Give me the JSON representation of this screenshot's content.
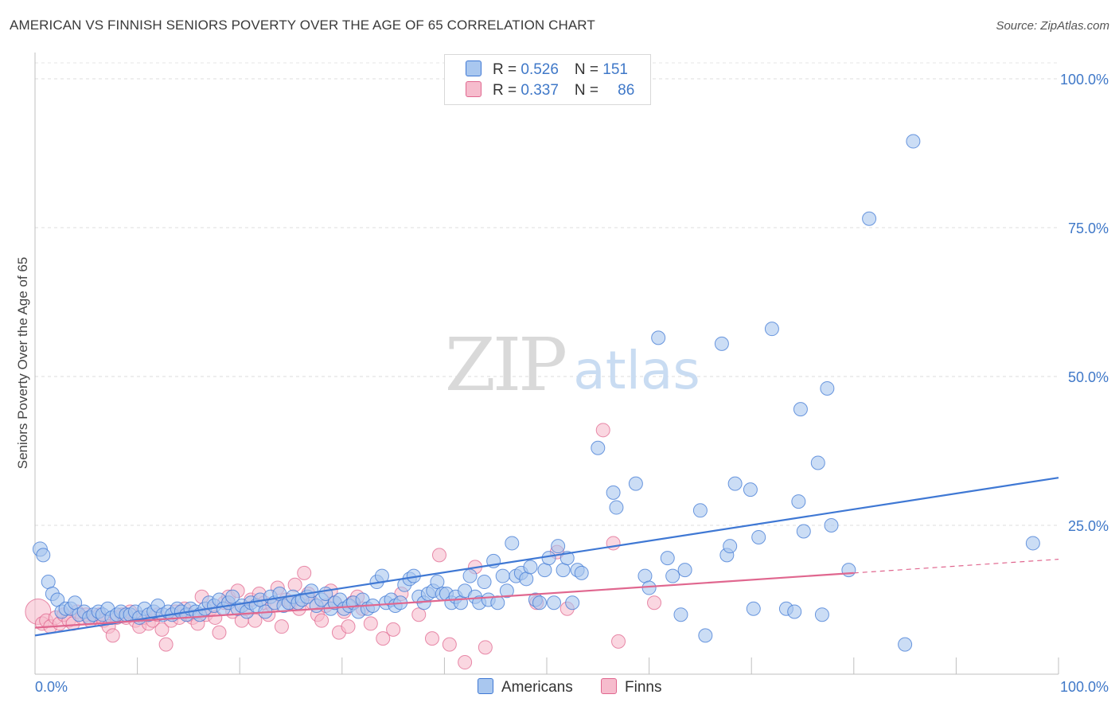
{
  "chart_data": {
    "type": "scatter",
    "title": "AMERICAN VS FINNISH SENIORS POVERTY OVER THE AGE OF 65 CORRELATION CHART",
    "source": "Source: ZipAtlas.com",
    "watermark": {
      "zip": "ZIP",
      "atlas": "atlas"
    },
    "ylabel": "Seniors Poverty Over the Age of 65",
    "xlim": [
      0,
      100
    ],
    "ylim": [
      0,
      100
    ],
    "x_tick_labels": [
      "0.0%",
      "100.0%"
    ],
    "y_ticks": [
      25,
      50,
      75,
      100
    ],
    "y_tick_labels": [
      "25.0%",
      "50.0%",
      "75.0%",
      "100.0%"
    ],
    "grid": true,
    "legend": {
      "placement": "top-center",
      "rows": [
        {
          "r_label": "R = ",
          "r_value": "0.526",
          "n_label": "N = ",
          "n_value": "151"
        },
        {
          "r_label": "R = ",
          "r_value": "0.337",
          "n_label": "N = ",
          "n_value": "86"
        }
      ]
    },
    "series": [
      {
        "name": "Americans",
        "color": "#3f78d4",
        "fill": "#a9c7ef",
        "trend": {
          "x": [
            0,
            100
          ],
          "y": [
            6.5,
            33.0
          ],
          "dashed_from": null
        },
        "points": [
          [
            0.5,
            21
          ],
          [
            0.8,
            20
          ],
          [
            1.3,
            15.5
          ],
          [
            1.7,
            13.5
          ],
          [
            2.2,
            12.5
          ],
          [
            2.6,
            10.5
          ],
          [
            3.0,
            11
          ],
          [
            3.5,
            11
          ],
          [
            3.9,
            12
          ],
          [
            4.3,
            10
          ],
          [
            4.8,
            10.5
          ],
          [
            5.3,
            9.5
          ],
          [
            5.7,
            10
          ],
          [
            6.2,
            10.5
          ],
          [
            6.6,
            10
          ],
          [
            7.1,
            11
          ],
          [
            7.5,
            9.5
          ],
          [
            8.0,
            10
          ],
          [
            8.4,
            10.5
          ],
          [
            8.9,
            10
          ],
          [
            9.3,
            10
          ],
          [
            9.8,
            10.5
          ],
          [
            10.2,
            9.5
          ],
          [
            10.7,
            11
          ],
          [
            11.1,
            10
          ],
          [
            11.6,
            10.5
          ],
          [
            12.0,
            11.5
          ],
          [
            12.5,
            10
          ],
          [
            13.0,
            10.5
          ],
          [
            13.4,
            10
          ],
          [
            13.9,
            11
          ],
          [
            14.3,
            10.5
          ],
          [
            14.8,
            10
          ],
          [
            15.2,
            11
          ],
          [
            15.7,
            10.5
          ],
          [
            16.1,
            10
          ],
          [
            16.6,
            11
          ],
          [
            17.0,
            12
          ],
          [
            17.5,
            11.5
          ],
          [
            18.0,
            12.5
          ],
          [
            18.4,
            11
          ],
          [
            18.9,
            12
          ],
          [
            19.3,
            13
          ],
          [
            19.8,
            11
          ],
          [
            20.2,
            11.5
          ],
          [
            20.7,
            10.5
          ],
          [
            21.1,
            12
          ],
          [
            21.6,
            11.5
          ],
          [
            22.0,
            12.5
          ],
          [
            22.5,
            10.5
          ],
          [
            23.0,
            13
          ],
          [
            23.4,
            12
          ],
          [
            23.9,
            13.5
          ],
          [
            24.3,
            11.5
          ],
          [
            24.8,
            12
          ],
          [
            25.2,
            13
          ],
          [
            25.7,
            12
          ],
          [
            26.1,
            12.5
          ],
          [
            26.6,
            13
          ],
          [
            27.0,
            14
          ],
          [
            27.5,
            11.5
          ],
          [
            28.0,
            12.5
          ],
          [
            28.4,
            13.5
          ],
          [
            28.9,
            11
          ],
          [
            29.3,
            12
          ],
          [
            29.8,
            12.5
          ],
          [
            30.2,
            11
          ],
          [
            30.7,
            11.5
          ],
          [
            31.1,
            12
          ],
          [
            31.6,
            10.5
          ],
          [
            32.0,
            12.5
          ],
          [
            32.5,
            11
          ],
          [
            33.0,
            11.5
          ],
          [
            33.4,
            15.5
          ],
          [
            33.9,
            16.5
          ],
          [
            34.3,
            12
          ],
          [
            34.8,
            12.5
          ],
          [
            35.2,
            11.5
          ],
          [
            35.7,
            12
          ],
          [
            36.1,
            15
          ],
          [
            36.6,
            16
          ],
          [
            37.0,
            16.5
          ],
          [
            37.5,
            13
          ],
          [
            38.0,
            12
          ],
          [
            38.4,
            13.5
          ],
          [
            38.9,
            14
          ],
          [
            39.3,
            15.5
          ],
          [
            39.8,
            13.5
          ],
          [
            40.2,
            13.5
          ],
          [
            40.7,
            12
          ],
          [
            41.1,
            13
          ],
          [
            41.6,
            12
          ],
          [
            42.0,
            14
          ],
          [
            42.5,
            16.5
          ],
          [
            43.0,
            13
          ],
          [
            43.4,
            12
          ],
          [
            43.9,
            15.5
          ],
          [
            44.3,
            12.5
          ],
          [
            44.8,
            19
          ],
          [
            45.2,
            12
          ],
          [
            45.7,
            16.5
          ],
          [
            46.1,
            14
          ],
          [
            46.6,
            22
          ],
          [
            47.0,
            16.5
          ],
          [
            47.5,
            17
          ],
          [
            48.0,
            16
          ],
          [
            48.4,
            18
          ],
          [
            48.9,
            12.5
          ],
          [
            49.3,
            12
          ],
          [
            49.8,
            17.5
          ],
          [
            50.2,
            19.5
          ],
          [
            50.7,
            12
          ],
          [
            51.1,
            21.5
          ],
          [
            51.6,
            17.5
          ],
          [
            52.0,
            19.5
          ],
          [
            52.5,
            12
          ],
          [
            53.0,
            17.5
          ],
          [
            53.4,
            17
          ],
          [
            55.0,
            38
          ],
          [
            56.5,
            30.5
          ],
          [
            56.8,
            28
          ],
          [
            58.7,
            32
          ],
          [
            59.6,
            16.5
          ],
          [
            60.0,
            14.5
          ],
          [
            60.9,
            56.5
          ],
          [
            61.8,
            19.5
          ],
          [
            62.3,
            16.5
          ],
          [
            63.1,
            10
          ],
          [
            63.5,
            17.5
          ],
          [
            65.0,
            27.5
          ],
          [
            65.5,
            6.5
          ],
          [
            67.1,
            55.5
          ],
          [
            67.6,
            20
          ],
          [
            67.9,
            21.5
          ],
          [
            68.4,
            32
          ],
          [
            69.9,
            31
          ],
          [
            70.2,
            11
          ],
          [
            70.7,
            23
          ],
          [
            72.0,
            58
          ],
          [
            73.4,
            11
          ],
          [
            74.2,
            10.5
          ],
          [
            74.6,
            29
          ],
          [
            74.8,
            44.5
          ],
          [
            75.1,
            24
          ],
          [
            76.5,
            35.5
          ],
          [
            76.9,
            10
          ],
          [
            77.4,
            48
          ],
          [
            77.8,
            25
          ],
          [
            79.5,
            17.5
          ],
          [
            81.5,
            76.5
          ],
          [
            85.0,
            5
          ],
          [
            85.8,
            89.5
          ],
          [
            97.5,
            22
          ]
        ]
      },
      {
        "name": "Finns",
        "color": "#e0678f",
        "fill": "#f6bccd",
        "trend": {
          "x": [
            0,
            100
          ],
          "y": [
            7.8,
            19.3
          ],
          "dashed_from": 80
        },
        "points": [
          [
            0.3,
            10.5
          ],
          [
            0.7,
            8.5
          ],
          [
            1.1,
            9
          ],
          [
            1.5,
            8
          ],
          [
            2.0,
            9.5
          ],
          [
            2.4,
            8.5
          ],
          [
            2.8,
            10
          ],
          [
            3.3,
            9
          ],
          [
            3.7,
            8.5
          ],
          [
            4.1,
            10.5
          ],
          [
            4.6,
            9.5
          ],
          [
            5.0,
            10
          ],
          [
            5.4,
            9
          ],
          [
            5.9,
            9.5
          ],
          [
            6.3,
            10
          ],
          [
            6.7,
            9
          ],
          [
            7.2,
            8
          ],
          [
            7.6,
            6.5
          ],
          [
            8.0,
            9.5
          ],
          [
            8.5,
            10
          ],
          [
            8.9,
            9.5
          ],
          [
            9.3,
            10.5
          ],
          [
            9.8,
            9
          ],
          [
            10.2,
            8
          ],
          [
            10.6,
            9.5
          ],
          [
            11.1,
            8.5
          ],
          [
            11.5,
            9
          ],
          [
            12.0,
            10
          ],
          [
            12.4,
            7.5
          ],
          [
            12.8,
            5
          ],
          [
            13.3,
            9
          ],
          [
            13.7,
            10.5
          ],
          [
            14.1,
            9.5
          ],
          [
            14.6,
            11
          ],
          [
            15.0,
            10
          ],
          [
            15.4,
            9.5
          ],
          [
            15.9,
            8.5
          ],
          [
            16.3,
            13
          ],
          [
            16.7,
            10
          ],
          [
            17.2,
            11
          ],
          [
            17.6,
            9.5
          ],
          [
            18.0,
            7
          ],
          [
            18.5,
            12
          ],
          [
            18.9,
            13
          ],
          [
            19.3,
            10.5
          ],
          [
            19.8,
            14
          ],
          [
            20.2,
            9
          ],
          [
            20.6,
            11
          ],
          [
            21.1,
            12.5
          ],
          [
            21.5,
            9
          ],
          [
            21.9,
            13.5
          ],
          [
            22.4,
            12
          ],
          [
            22.8,
            10
          ],
          [
            23.2,
            11.5
          ],
          [
            23.7,
            14.5
          ],
          [
            24.1,
            8
          ],
          [
            24.5,
            12.5
          ],
          [
            25.0,
            12
          ],
          [
            25.4,
            15
          ],
          [
            25.8,
            11
          ],
          [
            26.3,
            17
          ],
          [
            26.7,
            13.5
          ],
          [
            27.1,
            12
          ],
          [
            27.6,
            10
          ],
          [
            28.0,
            9
          ],
          [
            28.4,
            11.5
          ],
          [
            28.9,
            14
          ],
          [
            29.3,
            12
          ],
          [
            29.7,
            7
          ],
          [
            30.2,
            10.5
          ],
          [
            30.6,
            8
          ],
          [
            31.0,
            12
          ],
          [
            31.5,
            13
          ],
          [
            32.0,
            11
          ],
          [
            32.8,
            8.5
          ],
          [
            34.0,
            6
          ],
          [
            35.0,
            7.5
          ],
          [
            35.8,
            13.5
          ],
          [
            37.5,
            10
          ],
          [
            38.8,
            6
          ],
          [
            39.5,
            20
          ],
          [
            40.5,
            5
          ],
          [
            42.0,
            2
          ],
          [
            43.0,
            18
          ],
          [
            44.0,
            4.5
          ],
          [
            49.0,
            12
          ],
          [
            51.0,
            20.5
          ],
          [
            52.0,
            11
          ],
          [
            55.5,
            41
          ],
          [
            56.5,
            22
          ],
          [
            57.0,
            5.5
          ],
          [
            60.5,
            12
          ]
        ]
      }
    ]
  }
}
